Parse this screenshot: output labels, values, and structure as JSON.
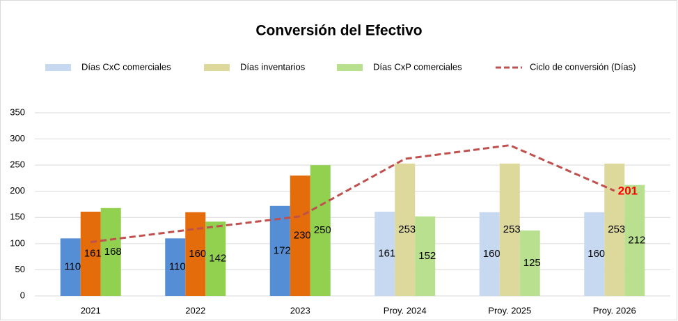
{
  "chart_data": {
    "type": "bar",
    "title": "Conversión del Efectivo",
    "categories": [
      "2021",
      "2022",
      "2023",
      "Proy. 2024",
      "Proy. 2025",
      "Proy. 2026"
    ],
    "series": [
      {
        "name": "Días CxC comerciales",
        "color": "#c6d9f1",
        "colors": [
          "#558ed5",
          "#558ed5",
          "#558ed5",
          "#c6d9f1",
          "#c6d9f1",
          "#c6d9f1"
        ],
        "values": [
          110,
          110,
          172,
          161,
          160,
          160
        ]
      },
      {
        "name": "Días inventarios",
        "color": "#ddd89b",
        "colors": [
          "#e46c0a",
          "#e46c0a",
          "#e46c0a",
          "#ddd89b",
          "#ddd89b",
          "#ddd89b"
        ],
        "values": [
          161,
          160,
          230,
          253,
          253,
          253
        ]
      },
      {
        "name": "Días CxP comerciales",
        "color": "#b9e08f",
        "colors": [
          "#92d050",
          "#92d050",
          "#92d050",
          "#b9e08f",
          "#b9e08f",
          "#b9e08f"
        ],
        "values": [
          168,
          142,
          250,
          152,
          125,
          212
        ]
      },
      {
        "name": "Ciclo de conversión  (Días)",
        "type": "line",
        "color": "#c0504d",
        "values": [
          103,
          128,
          152,
          262,
          288,
          201
        ],
        "value_labels": [
          null,
          null,
          null,
          null,
          null,
          "201"
        ],
        "label_color": "#ff0000"
      }
    ],
    "ylim": [
      0,
      350
    ],
    "yticks": [
      0,
      50,
      100,
      150,
      200,
      250,
      300,
      350
    ],
    "grid": true,
    "legend": "top"
  }
}
